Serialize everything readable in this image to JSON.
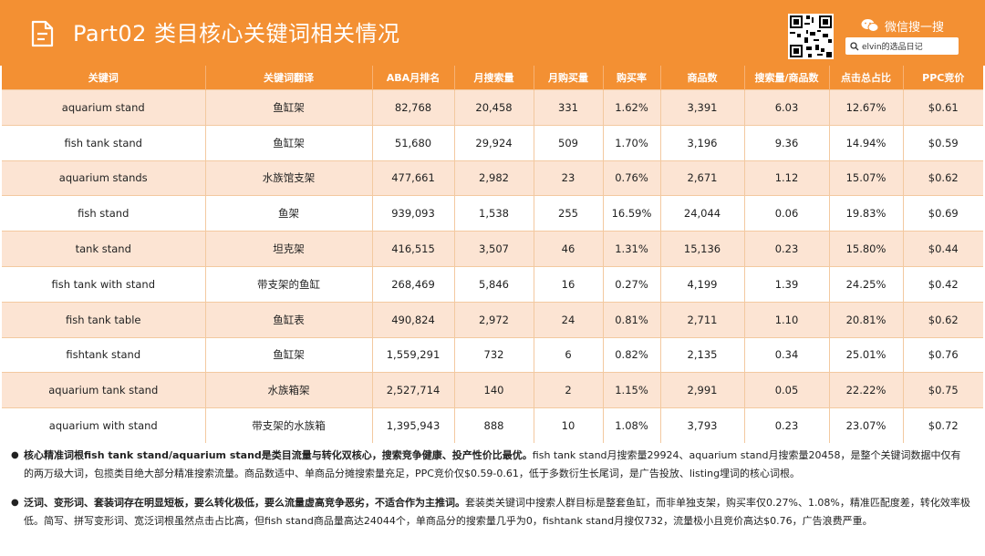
{
  "header": {
    "title": "Part02 类目核心关键词相关情况",
    "wechat_label": "微信搜一搜",
    "search_text": "elvin的选品日记"
  },
  "table": {
    "columns": [
      "关键词",
      "关键词翻译",
      "ABA月排名",
      "月搜索量",
      "月购买量",
      "购买率",
      "商品数",
      "搜索量/商品数",
      "点击总占比",
      "PPC竞价"
    ],
    "rows": [
      [
        "aquarium stand",
        "鱼缸架",
        "82,768",
        "20,458",
        "331",
        "1.62%",
        "3,391",
        "6.03",
        "12.67%",
        "$0.61"
      ],
      [
        "fish tank stand",
        "鱼缸架",
        "51,680",
        "29,924",
        "509",
        "1.70%",
        "3,196",
        "9.36",
        "14.94%",
        "$0.59"
      ],
      [
        "aquarium stands",
        "水族馆支架",
        "477,661",
        "2,982",
        "23",
        "0.76%",
        "2,671",
        "1.12",
        "15.07%",
        "$0.62"
      ],
      [
        "fish stand",
        "鱼架",
        "939,093",
        "1,538",
        "255",
        "16.59%",
        "24,044",
        "0.06",
        "19.83%",
        "$0.69"
      ],
      [
        "tank stand",
        "坦克架",
        "416,515",
        "3,507",
        "46",
        "1.31%",
        "15,136",
        "0.23",
        "15.80%",
        "$0.44"
      ],
      [
        "fish tank with stand",
        "带支架的鱼缸",
        "268,469",
        "5,846",
        "16",
        "0.27%",
        "4,199",
        "1.39",
        "24.25%",
        "$0.42"
      ],
      [
        "fish tank table",
        "鱼缸表",
        "490,824",
        "2,972",
        "24",
        "0.81%",
        "2,711",
        "1.10",
        "20.81%",
        "$0.62"
      ],
      [
        "fishtank stand",
        "鱼缸架",
        "1,559,291",
        "732",
        "6",
        "0.82%",
        "2,135",
        "0.34",
        "25.01%",
        "$0.76"
      ],
      [
        "aquarium tank stand",
        "水族箱架",
        "2,527,714",
        "140",
        "2",
        "1.15%",
        "2,991",
        "0.05",
        "22.22%",
        "$0.75"
      ],
      [
        "aquarium with stand",
        "带支架的水族箱",
        "1,395,943",
        "888",
        "10",
        "1.08%",
        "3,793",
        "0.23",
        "23.07%",
        "$0.72"
      ]
    ]
  },
  "notes": [
    {
      "bold": "核心精准词根fish tank stand/aquarium stand是类目流量与转化双核心，搜索竞争健康、投产性价比最优。",
      "text": "fish tank stand月搜索量29924、aquarium stand月搜索量20458，是整个关键词数据中仅有的两万级大词，包揽类目绝大部分精准搜索流量。商品数适中、单商品分摊搜索量充足，PPC竞价仅$0.59-0.61，低于多数衍生长尾词，是广告投放、listing埋词的核心词根。"
    },
    {
      "bold": "泛词、变形词、套装词存在明显短板，要么转化极低，要么流量虚高竞争恶劣，不适合作为主推词。",
      "text": "套装类关键词中搜索人群目标是整套鱼缸，而非单独支架，购买率仅0.27%、1.08%，精准匹配度差，转化效率极低。简写、拼写变形词、宽泛词根虽然点击占比高，但fish stand商品量高达24044个，单商品分的搜索量几乎为0，fishtank stand月搜仅732，流量极小且竞价高达$0.76，广告浪费严重。"
    }
  ]
}
